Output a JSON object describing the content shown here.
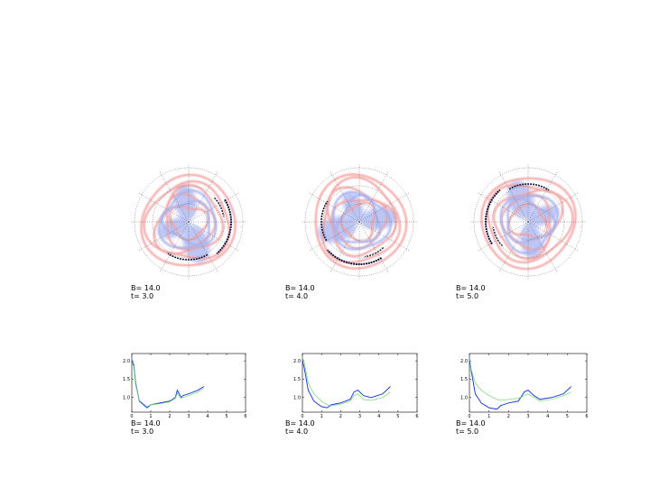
{
  "colors": {
    "red_ring": "#f4a0a0",
    "blue_cloud": "#a7b4f0",
    "dark_arc": "#10143a",
    "line_blue": "#1f3fd8",
    "line_green": "#6fd86f",
    "grid": "#555555"
  },
  "polar_panels": [
    {
      "b_label": "B=  14.0",
      "t_label": "t=   3.0",
      "rot": 20
    },
    {
      "b_label": "B=  14.0",
      "t_label": "t=   4.0",
      "rot": 110
    },
    {
      "b_label": "B=  14.0",
      "t_label": "t=   5.0",
      "rot": 200
    }
  ],
  "line_panels": [
    {
      "b_label": "B=  14.0",
      "t_label": "t=   3.0"
    },
    {
      "b_label": "B=  14.0",
      "t_label": "t=   4.0"
    },
    {
      "b_label": "B=  14.0",
      "t_label": "t=   5.0"
    }
  ],
  "chart_data": [
    {
      "type": "line",
      "xlim": [
        0,
        6
      ],
      "ylim": [
        0.6,
        2.2
      ],
      "xticks": [
        "0",
        "1",
        "2",
        "3",
        "4",
        "5",
        "6"
      ],
      "yticks": [
        "1.0",
        "1.5",
        "2.0"
      ],
      "series": [
        {
          "color": "blue",
          "x": [
            0,
            0.1,
            0.2,
            0.4,
            0.8,
            1.0,
            1.5,
            2.0,
            2.3,
            2.4,
            2.5,
            2.6,
            2.7,
            3.0,
            3.5,
            3.8
          ],
          "y": [
            2.0,
            1.9,
            1.4,
            0.9,
            0.72,
            0.8,
            0.85,
            0.9,
            1.0,
            1.2,
            1.1,
            1.0,
            1.05,
            1.1,
            1.2,
            1.3
          ]
        },
        {
          "color": "green",
          "x": [
            0,
            0.1,
            0.2,
            0.4,
            0.8,
            1.0,
            1.5,
            2.0,
            2.3,
            2.4,
            2.5,
            2.6,
            2.7,
            3.0,
            3.5,
            3.8
          ],
          "y": [
            1.95,
            1.85,
            1.35,
            0.92,
            0.75,
            0.8,
            0.83,
            0.88,
            0.98,
            1.12,
            1.05,
            0.98,
            1.0,
            1.05,
            1.15,
            1.25
          ]
        }
      ]
    },
    {
      "type": "line",
      "xlim": [
        0,
        6
      ],
      "ylim": [
        0.6,
        2.2
      ],
      "xticks": [
        "0",
        "1",
        "2",
        "3",
        "4",
        "5",
        "6"
      ],
      "yticks": [
        "1.0",
        "1.5",
        "2.0"
      ],
      "series": [
        {
          "color": "blue",
          "x": [
            0,
            0.1,
            0.3,
            0.6,
            1.0,
            1.3,
            1.5,
            2.0,
            2.5,
            2.7,
            2.9,
            3.2,
            3.6,
            4.2,
            4.6
          ],
          "y": [
            2.0,
            1.8,
            1.2,
            0.9,
            0.75,
            0.72,
            0.8,
            0.85,
            0.95,
            1.15,
            1.2,
            1.05,
            1.0,
            1.1,
            1.3
          ]
        },
        {
          "color": "green",
          "x": [
            0,
            0.1,
            0.3,
            0.6,
            1.0,
            1.3,
            1.5,
            2.0,
            2.5,
            2.7,
            2.9,
            3.2,
            3.6,
            4.2,
            4.6
          ],
          "y": [
            2.1,
            1.95,
            1.4,
            1.1,
            0.9,
            0.8,
            0.78,
            0.82,
            0.9,
            1.05,
            1.1,
            0.95,
            0.92,
            1.0,
            1.15
          ]
        }
      ]
    },
    {
      "type": "line",
      "xlim": [
        0,
        6
      ],
      "ylim": [
        0.6,
        2.2
      ],
      "xticks": [
        "0",
        "1",
        "2",
        "3",
        "4",
        "5",
        "6"
      ],
      "yticks": [
        "1.0",
        "1.5",
        "2.0"
      ],
      "series": [
        {
          "color": "blue",
          "x": [
            0,
            0.1,
            0.3,
            0.6,
            1.0,
            1.4,
            1.6,
            2.0,
            2.5,
            2.8,
            3.0,
            3.3,
            3.6,
            4.2,
            4.8,
            5.2
          ],
          "y": [
            2.0,
            1.7,
            1.1,
            0.85,
            0.72,
            0.68,
            0.78,
            0.85,
            0.9,
            1.15,
            1.2,
            1.05,
            0.95,
            1.0,
            1.1,
            1.3
          ]
        },
        {
          "color": "green",
          "x": [
            0,
            0.1,
            0.3,
            0.6,
            1.0,
            1.4,
            1.6,
            2.0,
            2.5,
            2.8,
            3.0,
            3.3,
            3.6,
            4.2,
            4.8,
            5.2
          ],
          "y": [
            1.9,
            1.75,
            1.4,
            1.2,
            1.05,
            0.95,
            0.92,
            0.95,
            0.98,
            1.05,
            1.1,
            1.0,
            0.9,
            0.95,
            1.05,
            1.15
          ]
        }
      ]
    }
  ]
}
